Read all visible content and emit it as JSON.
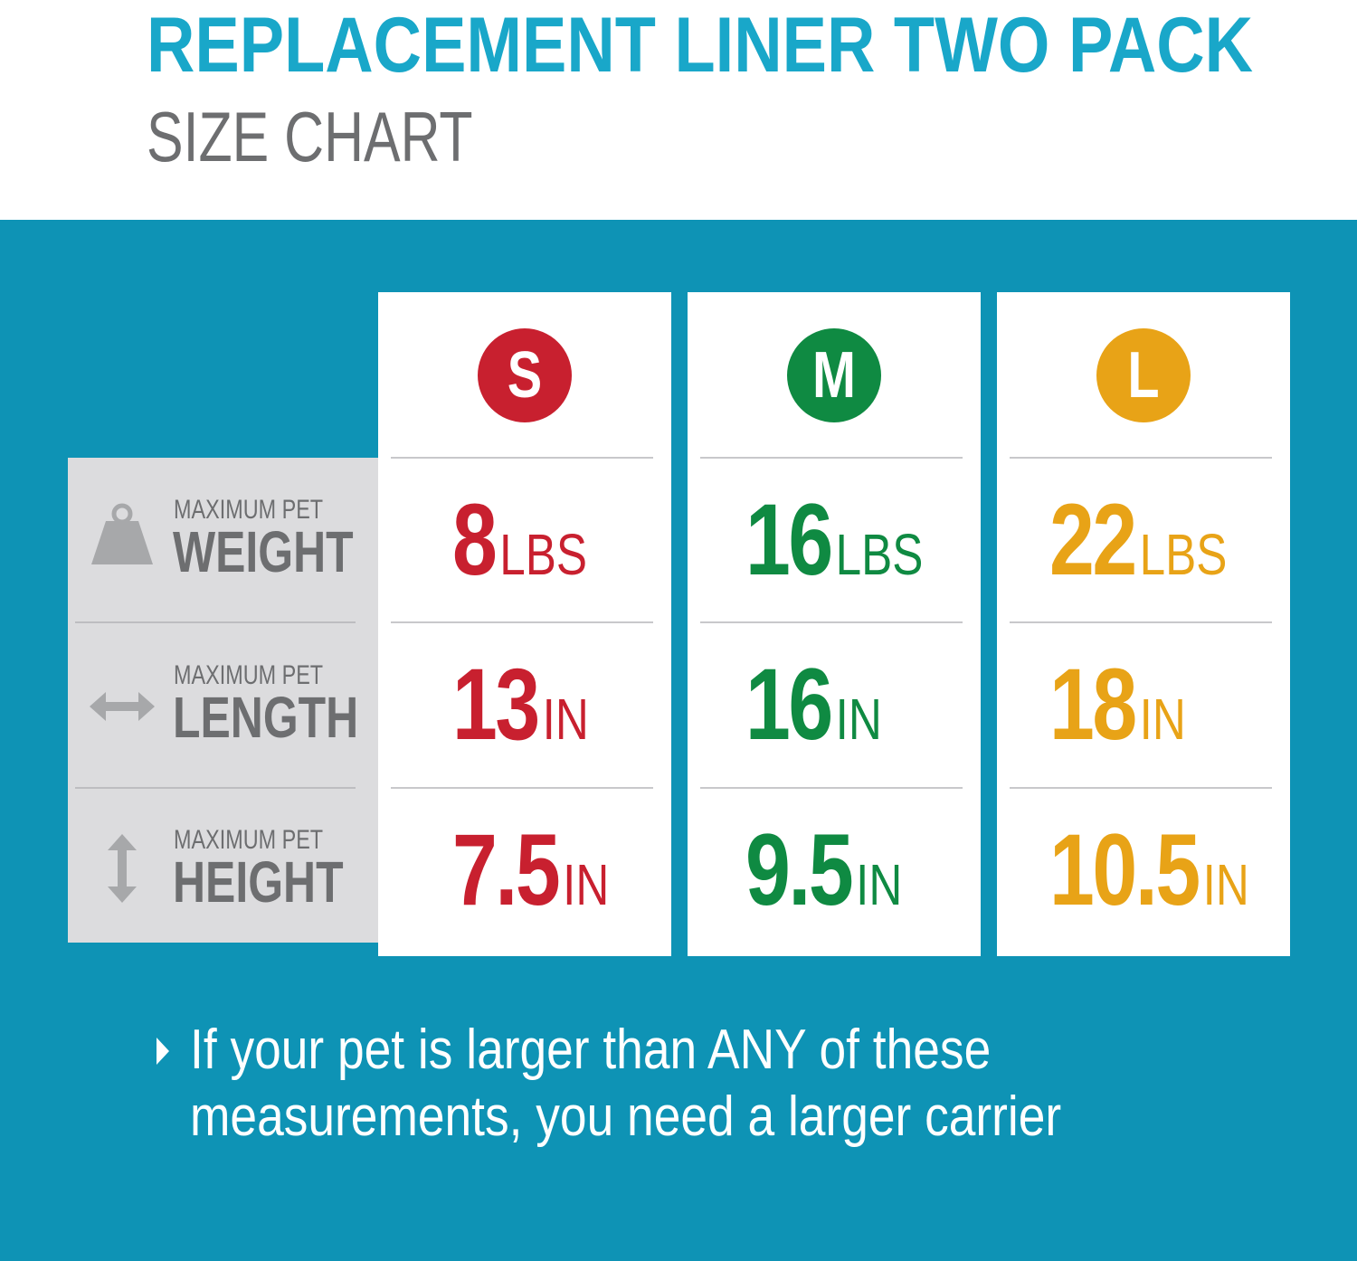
{
  "header": {
    "title": "REPLACEMENT LINER TWO PACK",
    "subtitle": "SIZE CHART"
  },
  "colors": {
    "title": "#19a7c9",
    "panel": "#0e93b5",
    "small": "#c8202f",
    "medium": "#0f8a42",
    "large": "#e8a317",
    "label_text": "#6d6e70"
  },
  "rows": [
    {
      "icon": "weight-icon",
      "small_label": "MAXIMUM PET",
      "big_label": "WEIGHT"
    },
    {
      "icon": "horizontal-arrow-icon",
      "small_label": "MAXIMUM PET",
      "big_label": "LENGTH"
    },
    {
      "icon": "vertical-arrow-icon",
      "small_label": "MAXIMUM PET",
      "big_label": "HEIGHT"
    }
  ],
  "sizes": [
    {
      "badge": "S",
      "color": "#c8202f",
      "values": [
        {
          "number": "8",
          "unit": "LBS"
        },
        {
          "number": "13",
          "unit": "IN"
        },
        {
          "number": "7.5",
          "unit": "IN"
        }
      ]
    },
    {
      "badge": "M",
      "color": "#0f8a42",
      "values": [
        {
          "number": "16",
          "unit": "LBS"
        },
        {
          "number": "16",
          "unit": "IN"
        },
        {
          "number": "9.5",
          "unit": "IN"
        }
      ]
    },
    {
      "badge": "L",
      "color": "#e8a317",
      "values": [
        {
          "number": "22",
          "unit": "LBS"
        },
        {
          "number": "18",
          "unit": "IN"
        },
        {
          "number": "10.5",
          "unit": "IN"
        }
      ]
    }
  ],
  "note": {
    "icon": "triangle-bullet-icon",
    "line1": "If your pet is larger than ANY of these",
    "line2": "measurements, you need a larger carrier"
  }
}
